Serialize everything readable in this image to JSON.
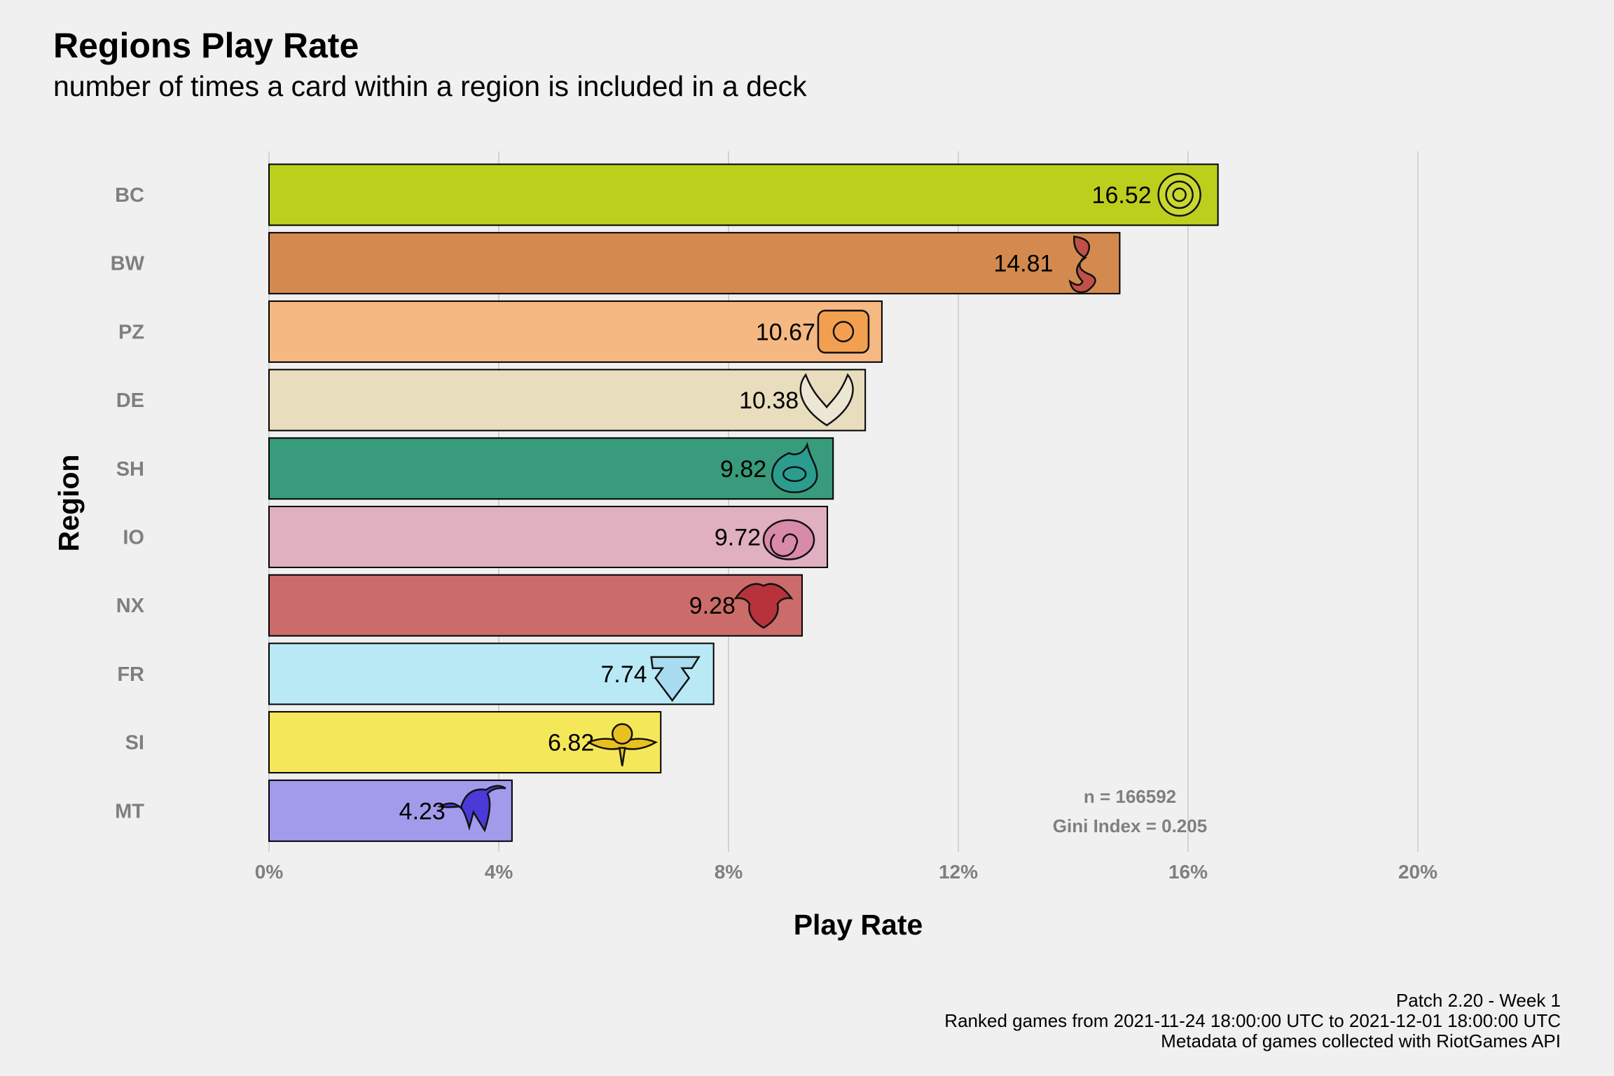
{
  "chart_data": {
    "type": "bar",
    "orientation": "horizontal",
    "title": "Regions Play Rate",
    "subtitle": "number of times a card within a region is included in a deck",
    "xlabel": "Play Rate",
    "ylabel": "Region",
    "xlim": [
      0,
      22
    ],
    "x_ticks": [
      0,
      4,
      8,
      12,
      16,
      20
    ],
    "x_tick_labels": [
      "0%",
      "4%",
      "8%",
      "12%",
      "16%",
      "20%"
    ],
    "grid": "vertical major gridlines",
    "legend": "none",
    "categories": [
      "BC",
      "BW",
      "PZ",
      "DE",
      "SH",
      "IO",
      "NX",
      "FR",
      "SI",
      "MT"
    ],
    "values": [
      16.52,
      14.81,
      10.67,
      10.38,
      9.82,
      9.72,
      9.28,
      7.74,
      6.82,
      4.23
    ],
    "value_labels": [
      "16.52",
      "14.81",
      "10.67",
      "10.38",
      "9.82",
      "9.72",
      "9.28",
      "7.74",
      "6.82",
      "4.23"
    ],
    "colors": [
      "#bccf1c",
      "#d48a4e",
      "#f6b882",
      "#e8ddbd",
      "#389b7b",
      "#e0b0c0",
      "#cc6c6a",
      "#bae9f6",
      "#f4e85a",
      "#a29bec"
    ],
    "icon_names": [
      "bandle-city-icon",
      "bilgewater-icon",
      "piltover-zaun-icon",
      "demacia-icon",
      "shurima-icon",
      "ionia-icon",
      "noxus-icon",
      "freljord-icon",
      "shadow-isles-icon",
      "targon-icon"
    ],
    "icon_colors": [
      "#c8d830",
      "#c0504a",
      "#f2a050",
      "#ece6d4",
      "#2a9d8f",
      "#d98aa8",
      "#b8323c",
      "#a8dcf0",
      "#e8c020",
      "#4a3ad8"
    ],
    "annotations": [
      "n = 166592",
      "Gini Index = 0.205"
    ]
  },
  "caption": {
    "line1": "Patch 2.20 - Week 1",
    "line2": "Ranked games from 2021-11-24 18:00:00 UTC to 2021-12-01 18:00:00 UTC",
    "line3": "Metadata of games collected with RiotGames API"
  }
}
